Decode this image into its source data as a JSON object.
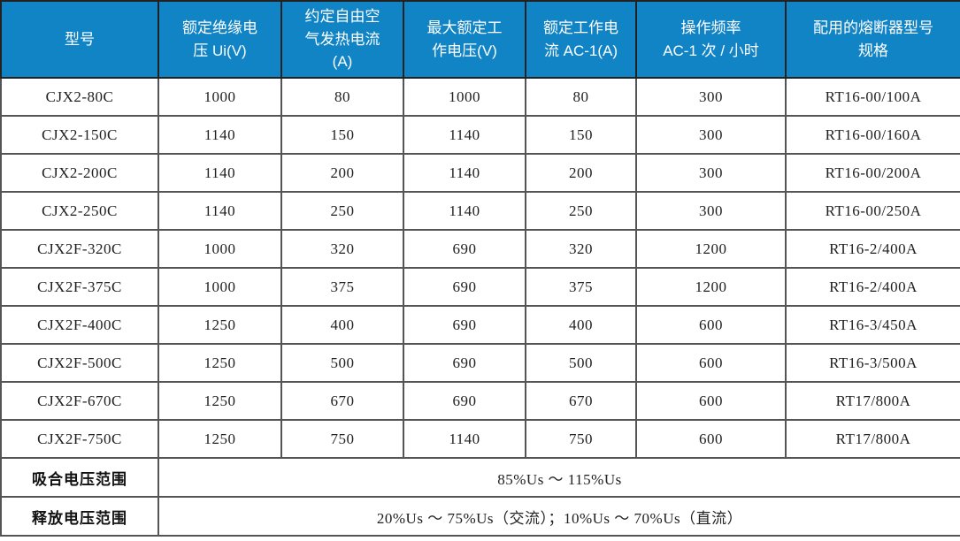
{
  "page": {
    "background": "#ffffff"
  },
  "colors": {
    "header_bg": "#1184c6",
    "header_text": "#ffffff",
    "grid_border": "#555555",
    "header_border": "#222222",
    "body_text": "#212121"
  },
  "table": {
    "headers": [
      "型号",
      "额定绝缘电\n压 Ui(V)",
      "约定自由空\n气发热电流\n(A)",
      "最大额定工\n作电压(V)",
      "额定工作电\n流 AC-1(A)",
      "操作频率\nAC-1 次 / 小时",
      "配用的熔断器型号\n规格"
    ],
    "rows": [
      [
        "CJX2-80C",
        "1000",
        "80",
        "1000",
        "80",
        "300",
        "RT16-00/100A"
      ],
      [
        "CJX2-150C",
        "1140",
        "150",
        "1140",
        "150",
        "300",
        "RT16-00/160A"
      ],
      [
        "CJX2-200C",
        "1140",
        "200",
        "1140",
        "200",
        "300",
        "RT16-00/200A"
      ],
      [
        "CJX2-250C",
        "1140",
        "250",
        "1140",
        "250",
        "300",
        "RT16-00/250A"
      ],
      [
        "CJX2F-320C",
        "1000",
        "320",
        "690",
        "320",
        "1200",
        "RT16-2/400A"
      ],
      [
        "CJX2F-375C",
        "1000",
        "375",
        "690",
        "375",
        "1200",
        "RT16-2/400A"
      ],
      [
        "CJX2F-400C",
        "1250",
        "400",
        "690",
        "400",
        "600",
        "RT16-3/450A"
      ],
      [
        "CJX2F-500C",
        "1250",
        "500",
        "690",
        "500",
        "600",
        "RT16-3/500A"
      ],
      [
        "CJX2F-670C",
        "1250",
        "670",
        "690",
        "670",
        "600",
        "RT17/800A"
      ],
      [
        "CJX2F-750C",
        "1250",
        "750",
        "1140",
        "750",
        "600",
        "RT17/800A"
      ]
    ],
    "footer_rows": [
      {
        "label": "吸合电压范围",
        "value": "85%Us ～ 115%Us"
      },
      {
        "label": "释放电压范围",
        "value": "20%Us ～ 75%Us（交流）；10%Us ～ 70%Us（直流）"
      }
    ]
  }
}
